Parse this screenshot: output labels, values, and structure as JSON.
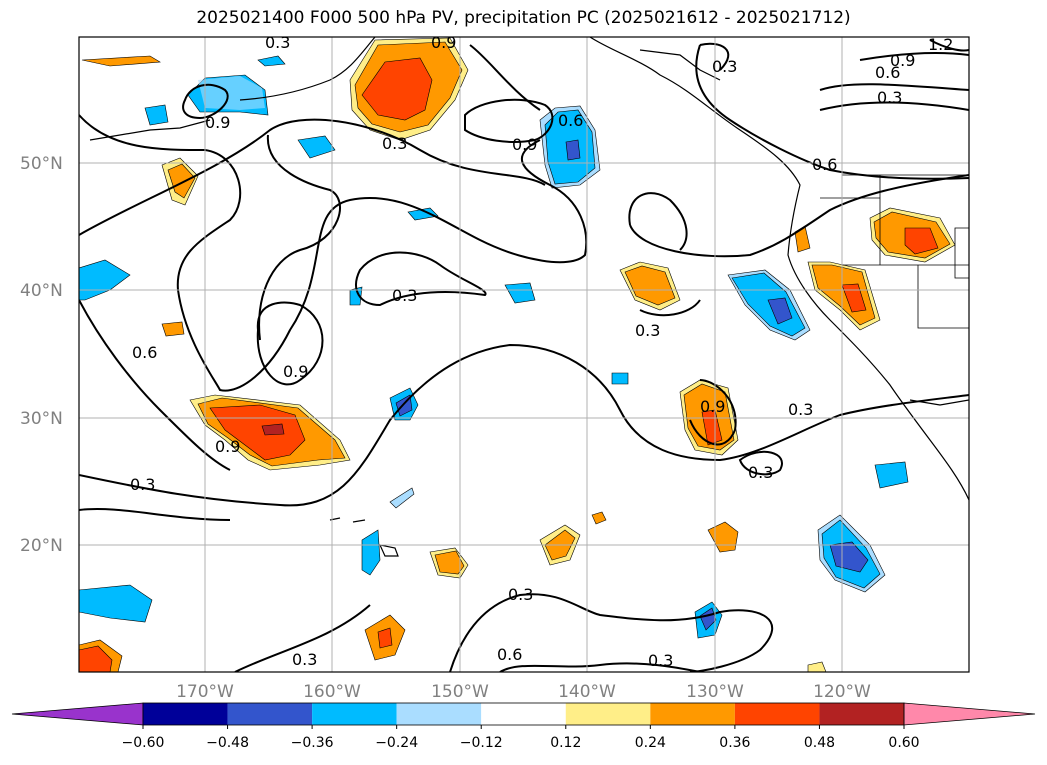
{
  "title": "2025021400 F000 500 hPa PV, precipitation PC (2025021612 - 2025021712)",
  "lat_labels": [
    "50°N",
    "40°N",
    "30°N",
    "20°N"
  ],
  "lon_labels": [
    "170°W",
    "160°W",
    "150°W",
    "140°W",
    "130°W",
    "120°W"
  ],
  "colorbar": {
    "ticks": [
      "−0.60",
      "−0.48",
      "−0.36",
      "−0.24",
      "−0.12",
      "0.12",
      "0.24",
      "0.36",
      "0.48",
      "0.60"
    ],
    "colors": [
      "#9933cc",
      "#000099",
      "#3355cc",
      "#00bbff",
      "#aaddff",
      "#ffffff",
      "#ffee88",
      "#ff9900",
      "#ff4400",
      "#b22222",
      "#ff88aa"
    ]
  },
  "contour_labels": [
    "0.3",
    "0.3",
    "0.3",
    "0.3",
    "0.3",
    "0.3",
    "0.3",
    "0.3",
    "0.3",
    "0.3",
    "0.3",
    "0.3",
    "0.6",
    "0.6",
    "0.6",
    "0.6",
    "0.6",
    "0.9",
    "0.9",
    "0.9",
    "0.9",
    "0.9",
    "0.9",
    "0.9",
    "1.2"
  ]
}
